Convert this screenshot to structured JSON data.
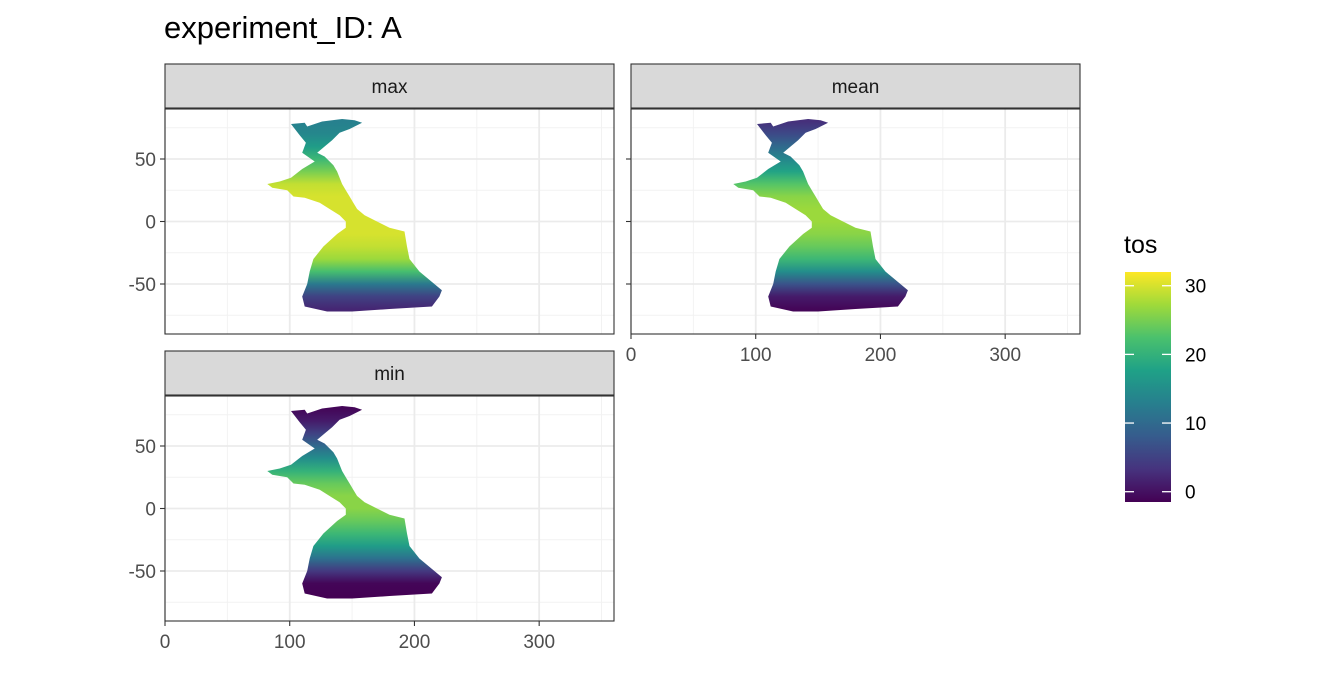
{
  "chart_data": {
    "type": "heatmap",
    "title": "experiment_ID: A",
    "xlabel": "",
    "ylabel": "",
    "xlim": [
      0,
      360
    ],
    "ylim": [
      -90,
      90
    ],
    "grid": true,
    "x_ticks": [
      0,
      100,
      200,
      300
    ],
    "x_tick_labels": [
      "0",
      "100",
      "200",
      "300"
    ],
    "y_ticks": [
      -50,
      0,
      50
    ],
    "y_tick_labels": [
      "-50",
      "0",
      "50"
    ],
    "legend": {
      "title": "tos",
      "placement": "right",
      "range": [
        -1.5,
        32
      ],
      "ticks": [
        0,
        10,
        20,
        30
      ],
      "tick_labels": [
        "0",
        "10",
        "20",
        "30"
      ],
      "palette": [
        "#440154",
        "#46337E",
        "#365C8D",
        "#277F8E",
        "#1FA187",
        "#4AC16D",
        "#9FDA3A",
        "#FDE725"
      ]
    },
    "panels": [
      {
        "name": "max",
        "temperature_by_latitude": [
          {
            "lat": 80,
            "tos": 13
          },
          {
            "lat": 70,
            "tos": 14
          },
          {
            "lat": 60,
            "tos": 17
          },
          {
            "lat": 50,
            "tos": 21
          },
          {
            "lat": 40,
            "tos": 25
          },
          {
            "lat": 30,
            "tos": 29
          },
          {
            "lat": 20,
            "tos": 30
          },
          {
            "lat": 10,
            "tos": 30
          },
          {
            "lat": 0,
            "tos": 30
          },
          {
            "lat": -10,
            "tos": 30
          },
          {
            "lat": -20,
            "tos": 29
          },
          {
            "lat": -30,
            "tos": 27
          },
          {
            "lat": -40,
            "tos": 22
          },
          {
            "lat": -50,
            "tos": 12
          },
          {
            "lat": -60,
            "tos": 5
          },
          {
            "lat": -70,
            "tos": 2
          }
        ]
      },
      {
        "name": "mean",
        "temperature_by_latitude": [
          {
            "lat": 80,
            "tos": 3
          },
          {
            "lat": 70,
            "tos": 6
          },
          {
            "lat": 60,
            "tos": 10
          },
          {
            "lat": 50,
            "tos": 14
          },
          {
            "lat": 40,
            "tos": 18
          },
          {
            "lat": 30,
            "tos": 23
          },
          {
            "lat": 20,
            "tos": 26
          },
          {
            "lat": 10,
            "tos": 27
          },
          {
            "lat": 0,
            "tos": 27
          },
          {
            "lat": -10,
            "tos": 26
          },
          {
            "lat": -20,
            "tos": 24
          },
          {
            "lat": -30,
            "tos": 21
          },
          {
            "lat": -40,
            "tos": 15
          },
          {
            "lat": -50,
            "tos": 7
          },
          {
            "lat": -60,
            "tos": 1
          },
          {
            "lat": -70,
            "tos": -1
          }
        ]
      },
      {
        "name": "min",
        "temperature_by_latitude": [
          {
            "lat": 80,
            "tos": -1
          },
          {
            "lat": 70,
            "tos": 1
          },
          {
            "lat": 60,
            "tos": 5
          },
          {
            "lat": 50,
            "tos": 10
          },
          {
            "lat": 40,
            "tos": 15
          },
          {
            "lat": 30,
            "tos": 20
          },
          {
            "lat": 20,
            "tos": 24
          },
          {
            "lat": 10,
            "tos": 26
          },
          {
            "lat": 0,
            "tos": 26
          },
          {
            "lat": -10,
            "tos": 24
          },
          {
            "lat": -20,
            "tos": 21
          },
          {
            "lat": -30,
            "tos": 17
          },
          {
            "lat": -40,
            "tos": 11
          },
          {
            "lat": -50,
            "tos": 4
          },
          {
            "lat": -60,
            "tos": -1
          },
          {
            "lat": -70,
            "tos": -1.5
          }
        ]
      }
    ],
    "basin_outline": [
      [
        101,
        78
      ],
      [
        112,
        79
      ],
      [
        114,
        76
      ],
      [
        126,
        80
      ],
      [
        142,
        82
      ],
      [
        152,
        81
      ],
      [
        158,
        79
      ],
      [
        148,
        74
      ],
      [
        140,
        71
      ],
      [
        134,
        65
      ],
      [
        128,
        60
      ],
      [
        122,
        55
      ],
      [
        128,
        52
      ],
      [
        135,
        45
      ],
      [
        138,
        40
      ],
      [
        140,
        35
      ],
      [
        142,
        30
      ],
      [
        145,
        25
      ],
      [
        148,
        20
      ],
      [
        151,
        15
      ],
      [
        154,
        10
      ],
      [
        160,
        5
      ],
      [
        170,
        0
      ],
      [
        180,
        -5
      ],
      [
        192,
        -8
      ],
      [
        194,
        -20
      ],
      [
        196,
        -30
      ],
      [
        204,
        -40
      ],
      [
        210,
        -45
      ],
      [
        216,
        -50
      ],
      [
        222,
        -55
      ],
      [
        220,
        -60
      ],
      [
        214,
        -68
      ],
      [
        180,
        -70
      ],
      [
        150,
        -72
      ],
      [
        130,
        -72
      ],
      [
        112,
        -68
      ],
      [
        110,
        -60
      ],
      [
        114,
        -50
      ],
      [
        116,
        -40
      ],
      [
        119,
        -30
      ],
      [
        127,
        -20
      ],
      [
        138,
        -10
      ],
      [
        145,
        -5
      ],
      [
        145,
        0
      ],
      [
        140,
        5
      ],
      [
        132,
        10
      ],
      [
        124,
        15
      ],
      [
        112,
        19
      ],
      [
        103,
        20
      ],
      [
        98,
        25
      ],
      [
        86,
        27
      ],
      [
        82,
        30
      ],
      [
        92,
        32
      ],
      [
        101,
        35
      ],
      [
        110,
        42
      ],
      [
        120,
        48
      ],
      [
        110,
        55
      ],
      [
        113,
        63
      ],
      [
        108,
        69
      ]
    ]
  }
}
